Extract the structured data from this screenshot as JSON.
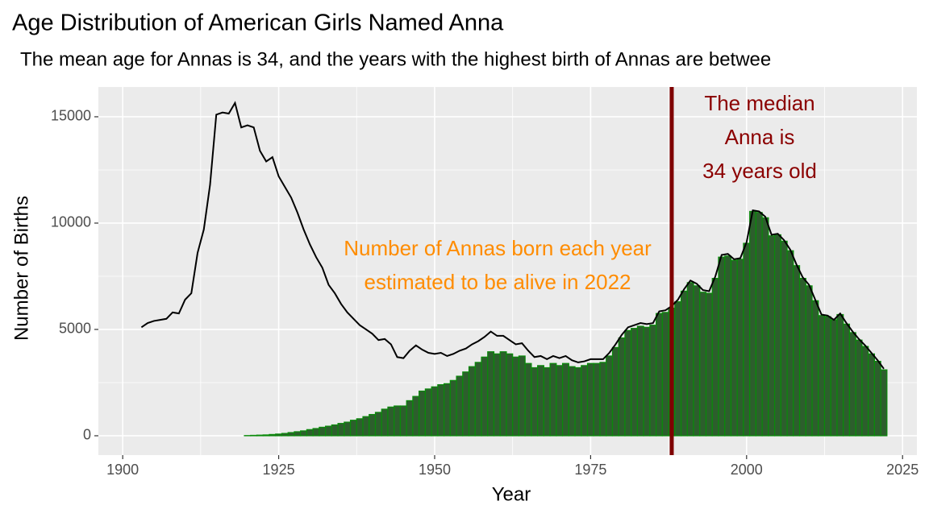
{
  "chart_data": {
    "type": "bar",
    "title": "Age Distribution of American Girls Named Anna",
    "subtitle": "The mean age for Annas is 34, and the years with the highest birth of Annas are betwee",
    "x_label": "Year",
    "y_label": "Number of Births",
    "x": [
      1903,
      1904,
      1905,
      1906,
      1907,
      1908,
      1909,
      1910,
      1911,
      1912,
      1913,
      1914,
      1915,
      1916,
      1917,
      1918,
      1919,
      1920,
      1921,
      1922,
      1923,
      1924,
      1925,
      1926,
      1927,
      1928,
      1929,
      1930,
      1931,
      1932,
      1933,
      1934,
      1935,
      1936,
      1937,
      1938,
      1939,
      1940,
      1941,
      1942,
      1943,
      1944,
      1945,
      1946,
      1947,
      1948,
      1949,
      1950,
      1951,
      1952,
      1953,
      1954,
      1955,
      1956,
      1957,
      1958,
      1959,
      1960,
      1961,
      1962,
      1963,
      1964,
      1965,
      1966,
      1967,
      1968,
      1969,
      1970,
      1971,
      1972,
      1973,
      1974,
      1975,
      1976,
      1977,
      1978,
      1979,
      1980,
      1981,
      1982,
      1983,
      1984,
      1985,
      1986,
      1987,
      1988,
      1989,
      1990,
      1991,
      1992,
      1993,
      1994,
      1995,
      1996,
      1997,
      1998,
      1999,
      2000,
      2001,
      2002,
      2003,
      2004,
      2005,
      2006,
      2007,
      2008,
      2009,
      2010,
      2011,
      2012,
      2013,
      2014,
      2015,
      2016,
      2017,
      2018,
      2019,
      2020,
      2021,
      2022
    ],
    "series": [
      {
        "type": "bar",
        "color": "#2d5e2d",
        "outline": "#0a8a0a",
        "values": [
          0,
          0,
          0,
          0,
          0,
          0,
          0,
          0,
          0,
          0,
          0,
          0,
          0,
          0,
          0,
          0,
          0,
          10,
          20,
          30,
          40,
          60,
          80,
          110,
          150,
          190,
          230,
          290,
          340,
          400,
          450,
          510,
          580,
          640,
          730,
          800,
          900,
          1000,
          1100,
          1250,
          1350,
          1400,
          1400,
          1650,
          1850,
          2100,
          2200,
          2300,
          2400,
          2450,
          2600,
          2800,
          3000,
          3250,
          3450,
          3700,
          3950,
          3850,
          3950,
          3850,
          3700,
          3750,
          3400,
          3200,
          3300,
          3200,
          3400,
          3300,
          3400,
          3250,
          3200,
          3300,
          3400,
          3400,
          3450,
          3750,
          4150,
          4600,
          4950,
          5050,
          5150,
          5100,
          5200,
          5750,
          5800,
          6000,
          6300,
          6800,
          7200,
          7050,
          6750,
          6700,
          7400,
          8400,
          8450,
          8250,
          8300,
          9050,
          10550,
          10500,
          10250,
          9400,
          9450,
          9150,
          8700,
          8000,
          7400,
          7050,
          6350,
          5650,
          5600,
          5450,
          5700,
          5250,
          4850,
          4500,
          4200,
          3850,
          3500,
          3100
        ]
      },
      {
        "type": "line",
        "color": "#000000",
        "values": [
          5100,
          5300,
          5400,
          5450,
          5500,
          5800,
          5750,
          6400,
          6700,
          8600,
          9700,
          11800,
          15100,
          15200,
          15150,
          15650,
          14500,
          14600,
          14500,
          13400,
          12900,
          13100,
          12200,
          11700,
          11200,
          10500,
          9700,
          9000,
          8400,
          7900,
          7100,
          6700,
          6200,
          5800,
          5500,
          5200,
          5000,
          4800,
          4500,
          4550,
          4300,
          3700,
          3650,
          4000,
          4250,
          4050,
          3900,
          3850,
          3900,
          3750,
          3850,
          4000,
          4100,
          4300,
          4450,
          4650,
          4900,
          4700,
          4700,
          4500,
          4300,
          4350,
          4000,
          3700,
          3750,
          3600,
          3750,
          3650,
          3750,
          3550,
          3450,
          3500,
          3600,
          3600,
          3600,
          3900,
          4300,
          4750,
          5100,
          5200,
          5300,
          5250,
          5300,
          5850,
          5900,
          6100,
          6400,
          6900,
          7300,
          7150,
          6850,
          6800,
          7500,
          8500,
          8550,
          8300,
          8350,
          9100,
          10600,
          10550,
          10300,
          9450,
          9500,
          9200,
          8750,
          8050,
          7450,
          7100,
          6400,
          5700,
          5650,
          5450,
          5750,
          5300,
          4900,
          4550,
          4250,
          3900,
          3550,
          3150
        ]
      }
    ],
    "vline": {
      "x": 1988,
      "color": "#7f0000"
    },
    "annotations": [
      {
        "lines": [
          "The median",
          "Anna is",
          "34 years old"
        ],
        "color": "#8b0000"
      },
      {
        "lines": [
          "Number of Annas born each year",
          "estimated to be alive in 2022"
        ],
        "color": "#ff8c00"
      }
    ],
    "xlim": [
      1896.1,
      2027.3
    ],
    "ylim": [
      -910,
      16400
    ],
    "xticks": [
      1900,
      1925,
      1950,
      1975,
      2000,
      2025
    ],
    "yticks": [
      0,
      5000,
      10000,
      15000
    ],
    "grid": true
  }
}
